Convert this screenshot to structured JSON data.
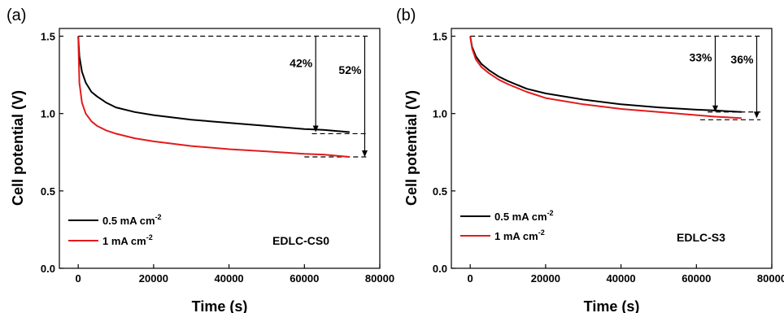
{
  "chart_data": [
    {
      "panel_label": "(a)",
      "type": "line",
      "xlabel": "Time (s)",
      "ylabel": "Cell potential (V)",
      "xlim": [
        -5000,
        80000
      ],
      "ylim": [
        0.0,
        1.55
      ],
      "xticks": [
        0,
        20000,
        40000,
        60000,
        80000
      ],
      "yticks": [
        0.0,
        0.5,
        1.0,
        1.5
      ],
      "x_tick_labels": [
        "0",
        "20000",
        "40000",
        "60000",
        "80000"
      ],
      "y_tick_labels": [
        "0.0",
        "0.5",
        "1.0",
        "1.5"
      ],
      "sample_label": "EDLC-CS0",
      "legend_position": "bottom-left",
      "series": [
        {
          "name": "0.5 mA cm",
          "superscript": "-2",
          "color": "#000000",
          "x": [
            0,
            300,
            1000,
            2000,
            3500,
            5000,
            7500,
            10000,
            15000,
            20000,
            30000,
            40000,
            50000,
            60000,
            65000,
            72000
          ],
          "y": [
            1.5,
            1.37,
            1.27,
            1.2,
            1.14,
            1.11,
            1.07,
            1.04,
            1.01,
            0.99,
            0.96,
            0.94,
            0.92,
            0.9,
            0.895,
            0.88
          ]
        },
        {
          "name": "1 mA cm",
          "superscript": "-2",
          "color": "#e41a1c",
          "x": [
            0,
            300,
            1000,
            2000,
            3500,
            5000,
            7500,
            10000,
            15000,
            20000,
            30000,
            40000,
            50000,
            60000,
            65000,
            72000
          ],
          "y": [
            1.5,
            1.2,
            1.07,
            1.0,
            0.95,
            0.92,
            0.89,
            0.87,
            0.84,
            0.82,
            0.79,
            0.77,
            0.755,
            0.74,
            0.735,
            0.72
          ]
        }
      ],
      "annotations": [
        {
          "label": "42%",
          "x": 63000,
          "y_top": 1.5,
          "y_bottom": 0.88
        },
        {
          "label": "52%",
          "x": 76000,
          "y_top": 1.5,
          "y_bottom": 0.72
        }
      ],
      "reference_lines": [
        {
          "y": 1.5,
          "x_start": 0,
          "x_end": 77000
        },
        {
          "y": 0.87,
          "x_start": 62000,
          "x_end": 77000
        },
        {
          "y": 0.72,
          "x_start": 60000,
          "x_end": 77000
        }
      ]
    },
    {
      "panel_label": "(b)",
      "type": "line",
      "xlabel": "Time (s)",
      "ylabel": "Cell potential (V)",
      "xlim": [
        -5000,
        80000
      ],
      "ylim": [
        0.0,
        1.55
      ],
      "xticks": [
        0,
        20000,
        40000,
        60000,
        80000
      ],
      "yticks": [
        0.0,
        0.5,
        1.0,
        1.5
      ],
      "x_tick_labels": [
        "0",
        "20000",
        "40000",
        "60000",
        "80000"
      ],
      "y_tick_labels": [
        "0.0",
        "0.5",
        "1.0",
        "1.5"
      ],
      "sample_label": "EDLC-S3",
      "legend_position": "bottom-left",
      "series": [
        {
          "name": "0.5 mA cm",
          "superscript": "-2",
          "color": "#000000",
          "x": [
            0,
            500,
            1500,
            3000,
            5000,
            7500,
            10000,
            15000,
            20000,
            30000,
            40000,
            50000,
            60000,
            65000,
            72000
          ],
          "y": [
            1.5,
            1.43,
            1.37,
            1.32,
            1.28,
            1.24,
            1.21,
            1.16,
            1.13,
            1.09,
            1.06,
            1.04,
            1.025,
            1.02,
            1.01
          ]
        },
        {
          "name": "1 mA cm",
          "superscript": "-2",
          "color": "#e41a1c",
          "x": [
            0,
            500,
            1500,
            3000,
            5000,
            7500,
            10000,
            15000,
            20000,
            30000,
            40000,
            50000,
            60000,
            65000,
            72000
          ],
          "y": [
            1.5,
            1.42,
            1.35,
            1.3,
            1.26,
            1.22,
            1.19,
            1.14,
            1.1,
            1.06,
            1.03,
            1.01,
            0.99,
            0.98,
            0.97
          ]
        }
      ],
      "annotations": [
        {
          "label": "33%",
          "x": 65000,
          "y_top": 1.5,
          "y_bottom": 1.01
        },
        {
          "label": "36%",
          "x": 76000,
          "y_top": 1.5,
          "y_bottom": 0.97
        }
      ],
      "reference_lines": [
        {
          "y": 1.5,
          "x_start": 0,
          "x_end": 77000
        },
        {
          "y": 1.01,
          "x_start": 63000,
          "x_end": 77000
        },
        {
          "y": 0.96,
          "x_start": 61000,
          "x_end": 77000
        }
      ]
    }
  ]
}
